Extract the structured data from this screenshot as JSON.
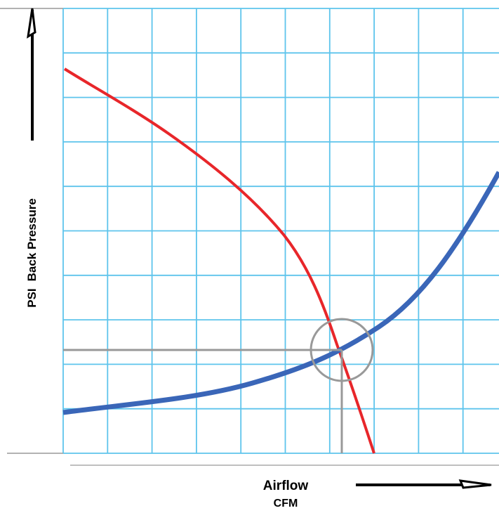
{
  "y_axis": {
    "unit": "PSI",
    "label": "Back Pressure"
  },
  "x_axis": {
    "label": "Airflow",
    "unit": "CFM"
  }
}
